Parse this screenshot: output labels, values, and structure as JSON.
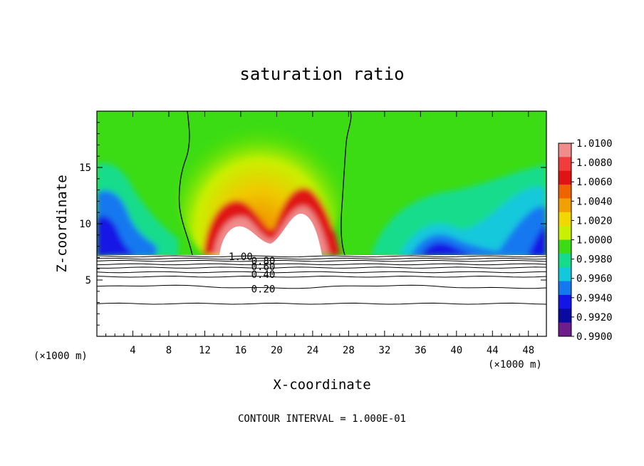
{
  "chart_data": {
    "type": "heatmap",
    "title": "saturation ratio",
    "xlabel": "X-coordinate",
    "ylabel": "Z-coordinate",
    "x_unit_label": "(×1000 m)",
    "x_unit_label_right": "(×1000 m)",
    "xlim": [
      0,
      50
    ],
    "ylim": [
      0,
      20
    ],
    "x_ticks": [
      4,
      8,
      12,
      16,
      20,
      24,
      28,
      32,
      36,
      40,
      44,
      48
    ],
    "y_ticks": [
      5,
      10,
      15
    ],
    "footer": "CONTOUR INTERVAL = 1.000E-01",
    "colorbar": {
      "levels": [
        "1.0100",
        "1.0080",
        "1.0060",
        "1.0040",
        "1.0020",
        "1.0000",
        "0.9980",
        "0.9960",
        "0.9940",
        "0.9920",
        "0.9900"
      ],
      "colors": [
        "#f08c8c",
        "#f03c3c",
        "#e01414",
        "#f06400",
        "#f0a000",
        "#f0d800",
        "#c8f000",
        "#3cdc14",
        "#14dc8c",
        "#14c8dc",
        "#1478f0",
        "#1414e6",
        "#0a0aa0",
        "#6e1e8c"
      ]
    },
    "surface_height_km": 7.2,
    "contour_lines": {
      "levels_km": [
        2.9,
        4.4,
        5.3,
        5.7,
        6.1,
        6.4,
        6.7,
        6.9,
        7.1
      ],
      "labels": [
        {
          "text": "0.20",
          "x": 18.5,
          "z": 4.2
        },
        {
          "text": "0.40",
          "x": 18.5,
          "z": 5.5
        },
        {
          "text": "0.60",
          "x": 18.5,
          "z": 6.2
        },
        {
          "text": "0.80",
          "x": 18.5,
          "z": 6.7
        },
        {
          "text": "1.00",
          "x": 16.0,
          "z": 7.1
        }
      ]
    },
    "saturation_boundary_x": [
      10.2,
      28.3
    ]
  }
}
